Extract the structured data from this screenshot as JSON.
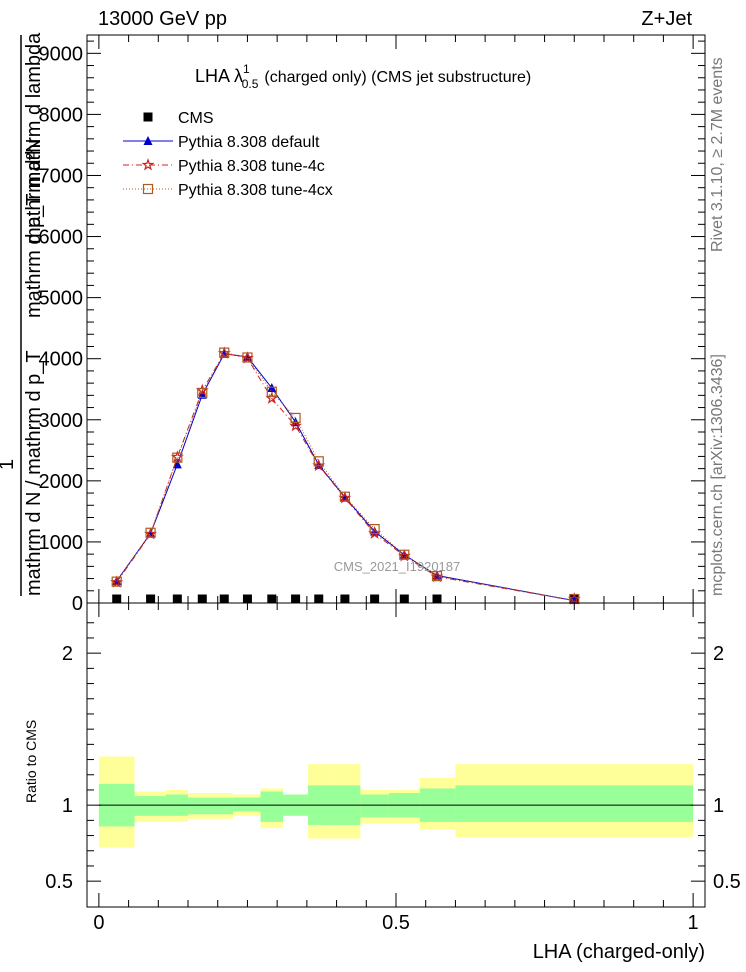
{
  "header": {
    "left": "13000 GeV pp",
    "right": "Z+Jet"
  },
  "side_text": {
    "rivet": "Rivet 3.1.10, ≥ 2.7M events",
    "mcplots": "mcplots.cern.ch [arXiv:1306.3436]"
  },
  "chart_data": [
    {
      "type": "line",
      "title": "LHA λ",
      "title_sup": "1",
      "title_sub": "0.5",
      "title_rest": "(charged only) (CMS jet substructure)",
      "ylabel_numerator": "mathrm d²N",
      "ylabel_denominator": "mathrm d p_T mathrm d lambda",
      "ylabel_factor": "1",
      "ylabel_lower": "mathrm d N / mathrm d p_T",
      "watermark": "CMS_2021_I1920187",
      "xlim": [
        -0.02,
        1.02
      ],
      "ylim": [
        0,
        9300
      ],
      "y_ticks": [
        0,
        1000,
        2000,
        3000,
        4000,
        5000,
        6000,
        7000,
        8000,
        9000
      ],
      "y_tick_labels": [
        "0",
        "1000",
        "2000",
        "3000",
        "4000",
        "5000",
        "6000",
        "7000",
        "8000",
        "9000"
      ],
      "legend_position": "top-left",
      "x": [
        0.03,
        0.087,
        0.132,
        0.174,
        0.211,
        0.25,
        0.291,
        0.331,
        0.37,
        0.414,
        0.464,
        0.514,
        0.569,
        0.8
      ],
      "series": [
        {
          "name": "CMS",
          "marker": "square",
          "color": "#000000",
          "values": [
            20,
            25,
            25,
            45,
            40,
            45,
            45,
            45,
            25,
            25,
            25,
            25,
            25,
            10
          ]
        },
        {
          "name": "Pythia 8.308 default",
          "marker": "triangle",
          "color": "#0000cc",
          "values": [
            360,
            1140,
            2270,
            3410,
            4080,
            4030,
            3520,
            2960,
            2260,
            1730,
            1170,
            790,
            450,
            40
          ]
        },
        {
          "name": "Pythia 8.308 tune-4c",
          "marker": "star",
          "color": "#cc2222",
          "values": [
            340,
            1130,
            2390,
            3480,
            4090,
            4010,
            3350,
            2900,
            2250,
            1720,
            1140,
            770,
            430,
            40
          ]
        },
        {
          "name": "Pythia 8.308 tune-4cx",
          "marker": "open-square",
          "color": "#b05a1e",
          "values": [
            350,
            1150,
            2380,
            3440,
            4100,
            4020,
            3460,
            3030,
            2320,
            1740,
            1210,
            790,
            440,
            40
          ]
        }
      ]
    },
    {
      "type": "area",
      "ylabel": "Ratio to CMS",
      "xlabel": "LHA (charged-only)",
      "xlim": [
        -0.02,
        1.02
      ],
      "ylim": [
        0.33,
        2.33
      ],
      "x_ticks": [
        0,
        0.5,
        1
      ],
      "x_tick_labels": [
        "0",
        "0.5",
        "1"
      ],
      "y_ticks": [
        0.5,
        1,
        2
      ],
      "y_tick_labels": [
        "0.5",
        "1",
        "2"
      ],
      "bin_edges": [
        0,
        0.06,
        0.113,
        0.15,
        0.197,
        0.226,
        0.272,
        0.31,
        0.352,
        0.388,
        0.44,
        0.488,
        0.54,
        0.6,
        1.0
      ],
      "stat_band": {
        "name": "stat",
        "color": "#99ff99",
        "low": [
          0.86,
          0.93,
          0.93,
          0.94,
          0.94,
          0.96,
          0.89,
          0.93,
          0.87,
          0.87,
          0.92,
          0.92,
          0.89,
          0.89
        ],
        "high": [
          1.14,
          1.06,
          1.07,
          1.05,
          1.05,
          1.05,
          1.09,
          1.07,
          1.13,
          1.13,
          1.07,
          1.08,
          1.11,
          1.13
        ]
      },
      "syst_band": {
        "name": "stat+syst",
        "color": "#ffff99",
        "low": [
          0.72,
          0.89,
          0.89,
          0.91,
          0.91,
          0.93,
          0.85,
          0.93,
          0.78,
          0.78,
          0.88,
          0.88,
          0.84,
          0.79
        ],
        "high": [
          1.32,
          1.09,
          1.1,
          1.08,
          1.08,
          1.07,
          1.11,
          1.07,
          1.27,
          1.27,
          1.1,
          1.1,
          1.18,
          1.27
        ]
      },
      "reference_line": 1
    }
  ]
}
